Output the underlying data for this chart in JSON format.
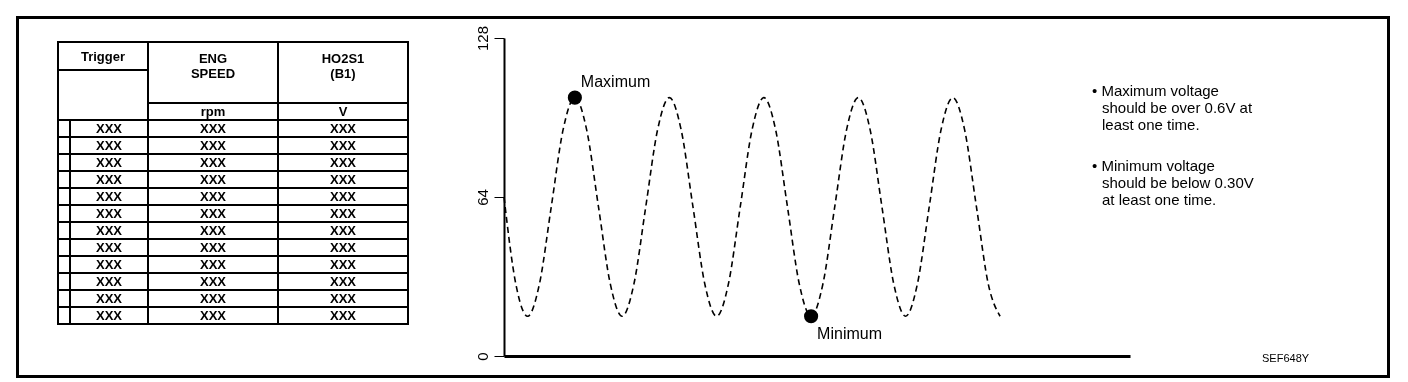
{
  "chart_data": [
    {
      "type": "other",
      "annotations": [
        "Trigger",
        "ENG SPEED",
        "HO2S1 (B1)",
        "rpm",
        "V",
        "XXX",
        "XXX",
        "XXX",
        "XXX",
        "XXX",
        "XXX",
        "XXX",
        "XXX",
        "XXX",
        "XXX",
        "XXX",
        "XXX",
        "XXX",
        "XXX",
        "XXX",
        "XXX",
        "XXX",
        "XXX",
        "XXX",
        "XXX",
        "XXX",
        "XXX",
        "XXX",
        "XXX",
        "XXX",
        "XXX",
        "XXX",
        "XXX",
        "XXX",
        "XXX",
        "XXX",
        "XXX",
        "XXX",
        "XXX",
        "XXX",
        "XXX"
      ]
    },
    {
      "type": "line",
      "categories": [
        null,
        null,
        null,
        null,
        null,
        null,
        null,
        null,
        null,
        null,
        null,
        null,
        null,
        null,
        null,
        null,
        null,
        null,
        null,
        null,
        null,
        null,
        null,
        null,
        null,
        null,
        null,
        null,
        null,
        null,
        null,
        null,
        null,
        null,
        null,
        null,
        null,
        null,
        null,
        null,
        null,
        null,
        null,
        null,
        null,
        null,
        null,
        null,
        null,
        null,
        null,
        null,
        null,
        null
      ],
      "series": [
        {
          "type": "line",
          "color": "#000000",
          "line_style": "dashed",
          "marker": "none",
          "values": [
            64,
            29,
            16,
            29,
            60,
            91,
            104,
            91,
            60,
            29,
            16,
            29,
            60,
            91,
            104,
            91,
            60,
            29,
            16,
            29,
            60,
            91,
            104,
            91,
            60,
            29,
            16,
            29,
            60,
            91,
            104,
            91,
            60,
            29,
            16,
            29,
            60,
            91,
            104,
            91,
            60,
            29,
            16,
            null,
            null,
            null,
            null,
            null,
            null,
            null,
            null,
            null,
            null,
            null
          ]
        },
        {
          "type": "scatter",
          "color": "#000000",
          "marker": "circle",
          "values": [
            null,
            null,
            null,
            null,
            null,
            null,
            104,
            null,
            null,
            null,
            null,
            null,
            null,
            null,
            null,
            null,
            null,
            null,
            null,
            null,
            null,
            null,
            null,
            null,
            null,
            null,
            16,
            null,
            null,
            null,
            null,
            null,
            null,
            null,
            null,
            null,
            null,
            null,
            null,
            null,
            null,
            null,
            null,
            null,
            null,
            null,
            null,
            null,
            null,
            null,
            null,
            null,
            null,
            null
          ]
        }
      ],
      "ylim": [
        0,
        128
      ],
      "yticks": [
        0,
        64,
        128
      ],
      "grid": false,
      "tick_labels": "y",
      "annotations": [
        "Maximum",
        "Minimum",
        "• Maximum voltage should be over 0.6V at least one time.",
        "• Minimum voltage should be below 0.30V at least one time.",
        "SEF648Y"
      ]
    }
  ]
}
